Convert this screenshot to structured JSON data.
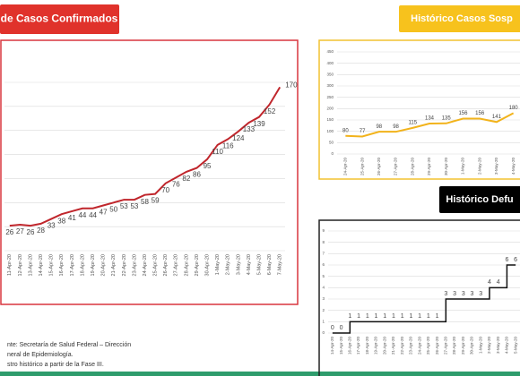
{
  "chart_data": [
    {
      "type": "line",
      "title": "de Casos Confirmados",
      "color": "#c0262c",
      "title_fill": "#e0322b",
      "title_color": "#ffffff",
      "frame": "#d9363e",
      "categories": [
        "11-Apr-20",
        "12-Apr-20",
        "13-Apr-20",
        "14-Apr-20",
        "15-Apr-20",
        "16-Apr-20",
        "17-Apr-20",
        "18-Apr-20",
        "19-Apr-20",
        "20-Apr-20",
        "21-Apr-20",
        "22-Apr-20",
        "23-Apr-20",
        "24-Apr-20",
        "25-Apr-20",
        "26-Apr-20",
        "27-Apr-20",
        "28-Apr-20",
        "29-Apr-20",
        "30-Apr-20",
        "1-May-20",
        "2-May-20",
        "3-May-20",
        "4-May-20",
        "5-May-20",
        "6-May-20",
        "7-May-20"
      ],
      "values": [
        26,
        27,
        26,
        28,
        33,
        38,
        41,
        44,
        44,
        47,
        50,
        53,
        53,
        58,
        59,
        70,
        76,
        82,
        86,
        95,
        110,
        116,
        124,
        133,
        139,
        152,
        170
      ],
      "ylim": [
        0,
        175
      ],
      "yticks": [
        0,
        25,
        50,
        75,
        100,
        125,
        150,
        175
      ],
      "grid": true,
      "ytick_labels": false
    },
    {
      "type": "line",
      "title": "Histórico Casos Sosp",
      "color": "#f2b31b",
      "title_fill": "#f7c21d",
      "title_color": "#ffffff",
      "frame": "#f2c230",
      "categories": [
        "24-Apr-20",
        "25-Apr-20",
        "26-Apr-20",
        "27-Apr-20",
        "28-Apr-20",
        "29-Apr-20",
        "30-Apr-20",
        "1-May-20",
        "2-May-20",
        "3-May-20",
        "4-May-20"
      ],
      "values": [
        80,
        77,
        98,
        98,
        115,
        134,
        135,
        156,
        156,
        141,
        180
      ],
      "ylim": [
        0,
        450
      ],
      "yticks": [
        0,
        50,
        100,
        150,
        200,
        250,
        300,
        350,
        400,
        450
      ],
      "grid": true,
      "ytick_labels": true
    },
    {
      "type": "step",
      "title": "Histórico Defu",
      "color": "#111111",
      "title_fill": "#000000",
      "title_color": "#ffffff",
      "frame": "#222222",
      "categories": [
        "14-Apr-20",
        "15-Apr-20",
        "16-Apr-20",
        "17-Apr-20",
        "18-Apr-20",
        "19-Apr-20",
        "20-Apr-20",
        "21-Apr-20",
        "22-Apr-20",
        "23-Apr-20",
        "24-Apr-20",
        "25-Apr-20",
        "26-Apr-20",
        "27-Apr-20",
        "28-Apr-20",
        "29-Apr-20",
        "30-Apr-20",
        "1-May-20",
        "2-May-20",
        "3-May-20",
        "4-May-20",
        "5-May-20"
      ],
      "values": [
        0,
        0,
        1,
        1,
        1,
        1,
        1,
        1,
        1,
        1,
        1,
        1,
        1,
        3,
        3,
        3,
        3,
        3,
        4,
        4,
        6,
        6
      ],
      "ylim": [
        0,
        9
      ],
      "yticks": [
        0,
        1,
        2,
        3,
        4,
        5,
        6,
        7,
        8,
        9
      ],
      "grid": true,
      "ytick_labels": true
    }
  ],
  "footer": {
    "lines": [
      "nte: Secretaría de Salud Federal – Dirección",
      "neral de Epidemiología.",
      "stro histórico a partir de la Fase III."
    ]
  }
}
